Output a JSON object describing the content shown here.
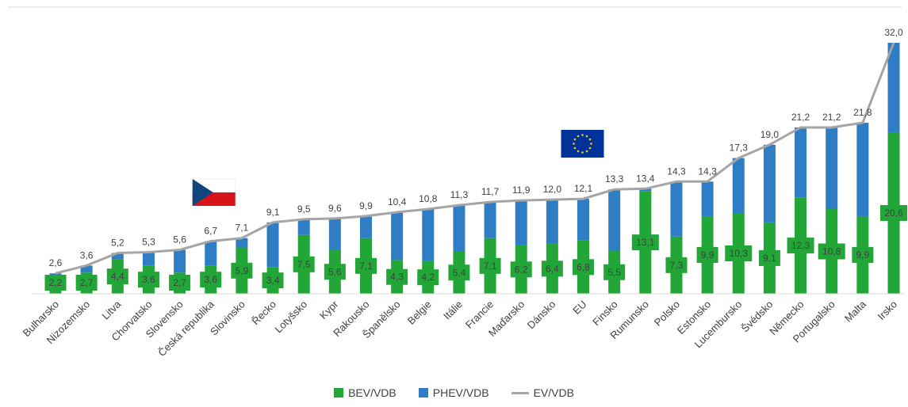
{
  "chart_data": {
    "type": "bar",
    "stacked": true,
    "categories": [
      "Bulharsko",
      "Nizozemsko",
      "Litva",
      "Chorvatsko",
      "Slovensko",
      "Česká republika",
      "Slovinsko",
      "Řecko",
      "Lotyšsko",
      "Kypr",
      "Rakousko",
      "Španělsko",
      "Belgie",
      "Itálie",
      "Francie",
      "Maďarsko",
      "Dánsko",
      "EU",
      "Finsko",
      "Rumunsko",
      "Polsko",
      "Estonsko",
      "Lucembursko",
      "Švédsko",
      "Německo",
      "Portugalsko",
      "Malta",
      "Irsko"
    ],
    "series": [
      {
        "name": "BEV/VDB",
        "type": "bar",
        "color": "#22a638",
        "values": [
          2.2,
          2.7,
          4.4,
          3.6,
          2.7,
          3.6,
          5.9,
          3.4,
          7.5,
          5.6,
          7.1,
          4.3,
          4.2,
          5.4,
          7.1,
          6.2,
          6.4,
          6.8,
          5.5,
          13.1,
          7.3,
          9.9,
          10.3,
          9.1,
          12.3,
          10.8,
          9.9,
          20.6
        ],
        "labels": [
          "2,2",
          "2,7",
          "4,4",
          "3,6",
          "2,7",
          "3,6",
          "5,9",
          "3,4",
          "7,5",
          "5,6",
          "7,1",
          "4,3",
          "4,2",
          "5,4",
          "7,1",
          "6,2",
          "6,4",
          "6,8",
          "5,5",
          "13,1",
          "7,3",
          "9,9",
          "10,3",
          "9,1",
          "12,3",
          "10,8",
          "9,9",
          "20,6"
        ]
      },
      {
        "name": "PHEV/VDB",
        "type": "bar",
        "color": "#2e7dc5",
        "values": [
          0.4,
          0.9,
          0.8,
          1.7,
          2.9,
          3.1,
          1.2,
          5.7,
          2.0,
          4.0,
          2.8,
          6.1,
          6.6,
          5.9,
          4.6,
          5.7,
          5.6,
          5.3,
          7.8,
          0.3,
          7.0,
          4.4,
          7.0,
          9.9,
          8.9,
          10.4,
          11.9,
          11.4
        ]
      },
      {
        "name": "EV/VDB",
        "type": "line",
        "color": "#a5a5a5",
        "values": [
          2.6,
          3.6,
          5.2,
          5.3,
          5.6,
          6.7,
          7.1,
          9.1,
          9.5,
          9.6,
          9.9,
          10.4,
          10.8,
          11.3,
          11.7,
          11.9,
          12.0,
          12.1,
          13.3,
          13.4,
          14.3,
          14.3,
          17.3,
          19.0,
          21.2,
          21.2,
          21.8,
          32.0
        ],
        "labels": [
          "2,6",
          "3,6",
          "5,2",
          "5,3",
          "5,6",
          "6,7",
          "7,1",
          "9,1",
          "9,5",
          "9,6",
          "9,9",
          "10,4",
          "10,8",
          "11,3",
          "11,7",
          "11,9",
          "12,0",
          "12,1",
          "13,3",
          "13,4",
          "14,3",
          "14,3",
          "17,3",
          "19,0",
          "21,2",
          "21,2",
          "21,8",
          "32,0"
        ]
      }
    ],
    "ylim": [
      0,
      34
    ],
    "grid": false,
    "legend_position": "bottom",
    "flags": [
      {
        "category": "Česká republika",
        "icon": "czech-flag-icon"
      },
      {
        "category": "EU",
        "icon": "eu-flag-icon"
      }
    ]
  }
}
